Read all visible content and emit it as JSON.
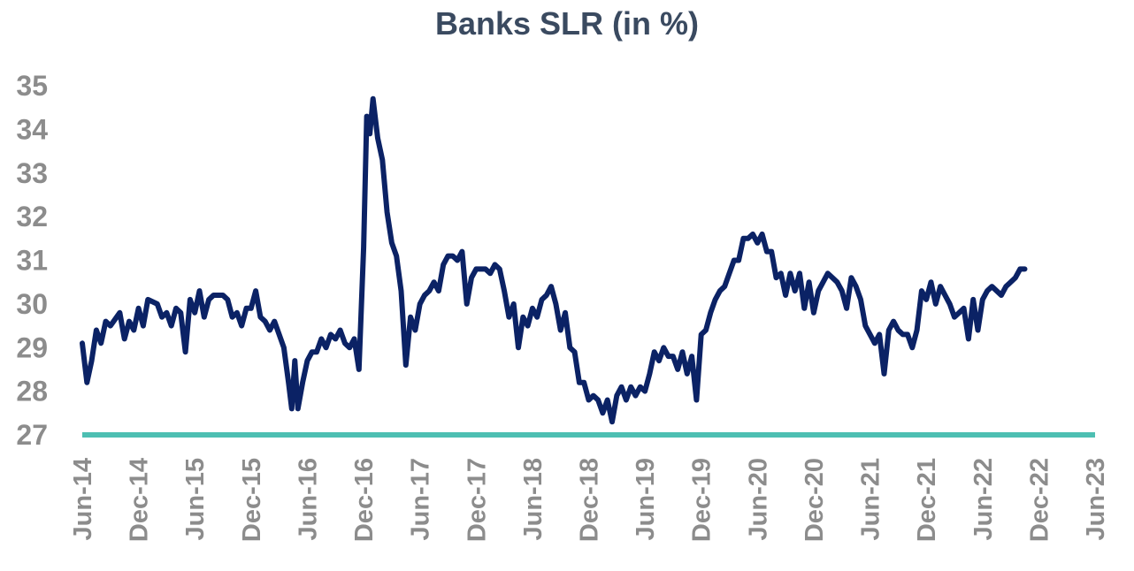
{
  "chart_data": {
    "type": "line",
    "title": "Banks SLR (in %)",
    "xlabel": "",
    "ylabel": "",
    "ylim": [
      27,
      35
    ],
    "yticks": [
      27,
      28,
      29,
      30,
      31,
      32,
      33,
      34,
      35
    ],
    "xticks": [
      "Jun-14",
      "Dec-14",
      "Jun-15",
      "Dec-15",
      "Jun-16",
      "Dec-16",
      "Jun-17",
      "Dec-17",
      "Jun-18",
      "Dec-18",
      "Jun-19",
      "Dec-19",
      "Jun-20",
      "Dec-20",
      "Jun-21",
      "Dec-21",
      "Jun-22",
      "Dec-22",
      "Jun-23"
    ],
    "grid": false,
    "legend": "none",
    "colors": {
      "line": "#0b2265",
      "reference": "#4dbfb2",
      "ticks": "#8c8c8c",
      "title": "#3a4a60"
    },
    "reference_line": {
      "y": 27
    },
    "series": [
      {
        "points": [
          [
            "Jun-14",
            29.1
          ],
          [
            "Jun-14",
            28.2
          ],
          [
            "Jul-14",
            28.7
          ],
          [
            "Jul-14",
            29.4
          ],
          [
            "Aug-14",
            29.1
          ],
          [
            "Aug-14",
            29.6
          ],
          [
            "Sep-14",
            29.5
          ],
          [
            "Oct-14",
            29.8
          ],
          [
            "Oct-14",
            29.2
          ],
          [
            "Nov-14",
            29.6
          ],
          [
            "Nov-14",
            29.4
          ],
          [
            "Dec-14",
            29.9
          ],
          [
            "Dec-14",
            29.5
          ],
          [
            "Jan-15",
            30.1
          ],
          [
            "Feb-15",
            30.0
          ],
          [
            "Feb-15",
            29.7
          ],
          [
            "Mar-15",
            29.8
          ],
          [
            "Mar-15",
            29.5
          ],
          [
            "Apr-15",
            29.9
          ],
          [
            "Apr-15",
            29.8
          ],
          [
            "May-15",
            28.9
          ],
          [
            "May-15",
            30.1
          ],
          [
            "Jun-15",
            29.8
          ],
          [
            "Jun-15",
            30.3
          ],
          [
            "Jul-15",
            29.7
          ],
          [
            "Jul-15",
            30.1
          ],
          [
            "Aug-15",
            30.2
          ],
          [
            "Sep-15",
            30.2
          ],
          [
            "Sep-15",
            30.1
          ],
          [
            "Oct-15",
            29.7
          ],
          [
            "Oct-15",
            29.8
          ],
          [
            "Nov-15",
            29.5
          ],
          [
            "Nov-15",
            29.9
          ],
          [
            "Dec-15",
            29.9
          ],
          [
            "Dec-15",
            30.3
          ],
          [
            "Jan-16",
            29.7
          ],
          [
            "Jan-16",
            29.6
          ],
          [
            "Feb-16",
            29.4
          ],
          [
            "Feb-16",
            29.6
          ],
          [
            "Mar-16",
            29.3
          ],
          [
            "Mar-16",
            29.0
          ],
          [
            "Apr-16",
            28.2
          ],
          [
            "Apr-16",
            27.6
          ],
          [
            "Apr-16",
            28.7
          ],
          [
            "May-16",
            27.6
          ],
          [
            "May-16",
            28.2
          ],
          [
            "Jun-16",
            28.7
          ],
          [
            "Jun-16",
            28.9
          ],
          [
            "Jul-16",
            28.9
          ],
          [
            "Jul-16",
            29.2
          ],
          [
            "Aug-16",
            29.0
          ],
          [
            "Aug-16",
            29.3
          ],
          [
            "Sep-16",
            29.2
          ],
          [
            "Sep-16",
            29.4
          ],
          [
            "Oct-16",
            29.1
          ],
          [
            "Oct-16",
            29.0
          ],
          [
            "Nov-16",
            29.2
          ],
          [
            "Nov-16",
            28.5
          ],
          [
            "Dec-16",
            31.3
          ],
          [
            "Dec-16",
            34.3
          ],
          [
            "Dec-16",
            33.9
          ],
          [
            "Jan-17",
            34.7
          ],
          [
            "Jan-17",
            33.8
          ],
          [
            "Feb-17",
            33.3
          ],
          [
            "Feb-17",
            32.1
          ],
          [
            "Mar-17",
            31.4
          ],
          [
            "Mar-17",
            31.1
          ],
          [
            "Apr-17",
            30.3
          ],
          [
            "Apr-17",
            28.6
          ],
          [
            "May-17",
            29.7
          ],
          [
            "May-17",
            29.4
          ],
          [
            "Jun-17",
            30.0
          ],
          [
            "Jun-17",
            30.2
          ],
          [
            "Jul-17",
            30.3
          ],
          [
            "Jul-17",
            30.5
          ],
          [
            "Aug-17",
            30.3
          ],
          [
            "Aug-17",
            30.9
          ],
          [
            "Sep-17",
            31.1
          ],
          [
            "Sep-17",
            31.1
          ],
          [
            "Oct-17",
            31.0
          ],
          [
            "Oct-17",
            31.2
          ],
          [
            "Nov-17",
            30.0
          ],
          [
            "Nov-17",
            30.6
          ],
          [
            "Dec-17",
            30.8
          ],
          [
            "Jan-18",
            30.8
          ],
          [
            "Jan-18",
            30.7
          ],
          [
            "Feb-18",
            30.9
          ],
          [
            "Feb-18",
            30.8
          ],
          [
            "Mar-18",
            30.3
          ],
          [
            "Mar-18",
            29.7
          ],
          [
            "Apr-18",
            30.0
          ],
          [
            "Apr-18",
            29.0
          ],
          [
            "May-18",
            29.7
          ],
          [
            "May-18",
            29.5
          ],
          [
            "Jun-18",
            29.9
          ],
          [
            "Jun-18",
            29.7
          ],
          [
            "Jul-18",
            30.1
          ],
          [
            "Jul-18",
            30.2
          ],
          [
            "Aug-18",
            30.4
          ],
          [
            "Aug-18",
            30.0
          ],
          [
            "Sep-18",
            29.4
          ],
          [
            "Sep-18",
            29.8
          ],
          [
            "Oct-18",
            29.0
          ],
          [
            "Oct-18",
            28.9
          ],
          [
            "Nov-18",
            28.2
          ],
          [
            "Nov-18",
            28.2
          ],
          [
            "Dec-18",
            27.8
          ],
          [
            "Dec-18",
            27.9
          ],
          [
            "Jan-19",
            27.8
          ],
          [
            "Jan-19",
            27.5
          ],
          [
            "Feb-19",
            27.8
          ],
          [
            "Feb-19",
            27.3
          ],
          [
            "Mar-19",
            27.9
          ],
          [
            "Mar-19",
            28.1
          ],
          [
            "Apr-19",
            27.8
          ],
          [
            "Apr-19",
            28.1
          ],
          [
            "May-19",
            27.9
          ],
          [
            "May-19",
            28.1
          ],
          [
            "Jun-19",
            28.0
          ],
          [
            "Jun-19",
            28.4
          ],
          [
            "Jul-19",
            28.9
          ],
          [
            "Jul-19",
            28.7
          ],
          [
            "Aug-19",
            29.0
          ],
          [
            "Aug-19",
            28.8
          ],
          [
            "Sep-19",
            28.8
          ],
          [
            "Sep-19",
            28.5
          ],
          [
            "Oct-19",
            28.9
          ],
          [
            "Oct-19",
            28.4
          ],
          [
            "Nov-19",
            28.8
          ],
          [
            "Nov-19",
            27.8
          ],
          [
            "Dec-19",
            29.3
          ],
          [
            "Dec-19",
            29.4
          ],
          [
            "Jan-20",
            29.8
          ],
          [
            "Jan-20",
            30.1
          ],
          [
            "Feb-20",
            30.3
          ],
          [
            "Feb-20",
            30.4
          ],
          [
            "Mar-20",
            30.7
          ],
          [
            "Mar-20",
            31.0
          ],
          [
            "Apr-20",
            31.0
          ],
          [
            "Apr-20",
            31.5
          ],
          [
            "May-20",
            31.5
          ],
          [
            "May-20",
            31.6
          ],
          [
            "Jun-20",
            31.4
          ],
          [
            "Jun-20",
            31.6
          ],
          [
            "Jul-20",
            31.2
          ],
          [
            "Jul-20",
            31.2
          ],
          [
            "Aug-20",
            30.6
          ],
          [
            "Aug-20",
            30.7
          ],
          [
            "Sep-20",
            30.2
          ],
          [
            "Sep-20",
            30.7
          ],
          [
            "Oct-20",
            30.3
          ],
          [
            "Oct-20",
            30.7
          ],
          [
            "Nov-20",
            29.9
          ],
          [
            "Nov-20",
            30.5
          ],
          [
            "Dec-20",
            29.8
          ],
          [
            "Dec-20",
            30.3
          ],
          [
            "Jan-21",
            30.5
          ],
          [
            "Jan-21",
            30.7
          ],
          [
            "Feb-21",
            30.6
          ],
          [
            "Feb-21",
            30.5
          ],
          [
            "Mar-21",
            30.3
          ],
          [
            "Mar-21",
            29.9
          ],
          [
            "Apr-21",
            30.6
          ],
          [
            "Apr-21",
            30.4
          ],
          [
            "May-21",
            30.1
          ],
          [
            "May-21",
            29.5
          ],
          [
            "Jun-21",
            29.3
          ],
          [
            "Jun-21",
            29.1
          ],
          [
            "Jul-21",
            29.3
          ],
          [
            "Jul-21",
            28.4
          ],
          [
            "Aug-21",
            29.4
          ],
          [
            "Aug-21",
            29.6
          ],
          [
            "Sep-21",
            29.4
          ],
          [
            "Sep-21",
            29.3
          ],
          [
            "Oct-21",
            29.3
          ],
          [
            "Oct-21",
            29.0
          ],
          [
            "Nov-21",
            29.4
          ],
          [
            "Nov-21",
            30.3
          ],
          [
            "Dec-21",
            30.1
          ],
          [
            "Dec-21",
            30.5
          ],
          [
            "Jan-22",
            30.0
          ],
          [
            "Jan-22",
            30.4
          ],
          [
            "Feb-22",
            30.2
          ],
          [
            "Feb-22",
            30.0
          ],
          [
            "Mar-22",
            29.7
          ],
          [
            "Mar-22",
            29.8
          ],
          [
            "Apr-22",
            29.9
          ],
          [
            "Apr-22",
            29.2
          ],
          [
            "May-22",
            30.1
          ],
          [
            "May-22",
            29.4
          ],
          [
            "Jun-22",
            30.1
          ],
          [
            "Jun-22",
            30.3
          ],
          [
            "Jul-22",
            30.4
          ],
          [
            "Jul-22",
            30.3
          ],
          [
            "Aug-22",
            30.2
          ],
          [
            "Aug-22",
            30.4
          ],
          [
            "Sep-22",
            30.5
          ],
          [
            "Sep-22",
            30.6
          ],
          [
            "Oct-22",
            30.8
          ],
          [
            "Oct-22",
            30.8
          ]
        ]
      }
    ]
  }
}
